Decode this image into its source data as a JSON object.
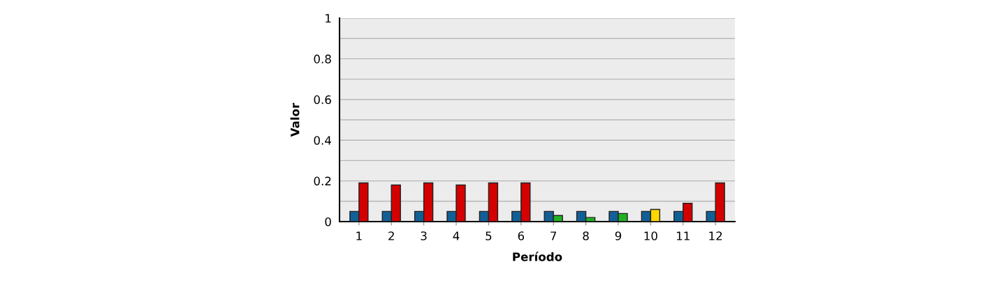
{
  "chart_data": {
    "type": "bar",
    "xlabel": "Período",
    "ylabel": "Valor",
    "categories": [
      "1",
      "2",
      "3",
      "4",
      "5",
      "6",
      "7",
      "8",
      "9",
      "10",
      "11",
      "12"
    ],
    "series": [
      {
        "color": "#125f96",
        "values": [
          0.05,
          0.05,
          0.05,
          0.05,
          0.05,
          0.05,
          0.05,
          0.05,
          0.05,
          0.05,
          0.05,
          0.05
        ]
      },
      {
        "colors": [
          "#d40000",
          "#d40000",
          "#d40000",
          "#d40000",
          "#d40000",
          "#d40000",
          "#22b022",
          "#22b022",
          "#22b022",
          "#ffd700",
          "#d40000",
          "#d40000"
        ],
        "values": [
          0.19,
          0.18,
          0.19,
          0.18,
          0.19,
          0.19,
          0.03,
          0.02,
          0.04,
          0.06,
          0.09,
          0.19
        ]
      }
    ],
    "ylim": [
      0,
      1
    ],
    "yticks": [
      0,
      {
        "value": 0.1,
        "label": null
      },
      0.2,
      {
        "value": 0.3,
        "label": null
      },
      0.4,
      {
        "value": 0.5,
        "label": null
      },
      0.6,
      {
        "value": 0.7,
        "label": null
      },
      0.8,
      {
        "value": 0.9,
        "label": null
      },
      1
    ],
    "grid": "y",
    "legend": false
  }
}
